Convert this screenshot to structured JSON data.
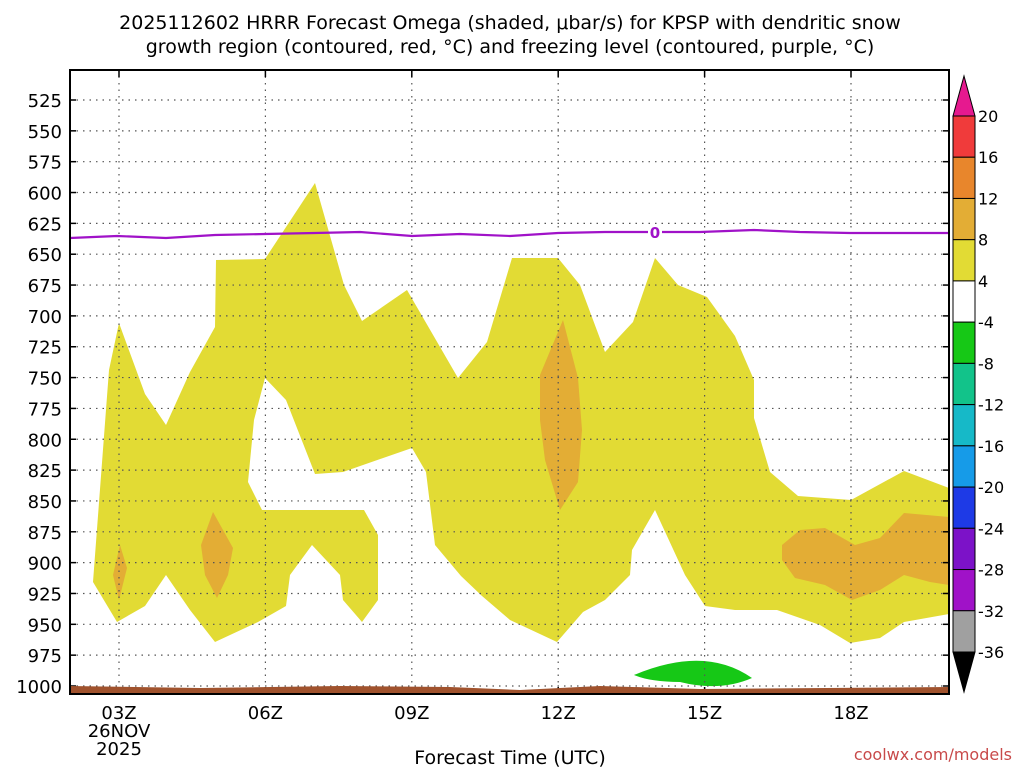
{
  "chart_data": {
    "type": "contour",
    "title_line1": "2025112602 HRRR Forecast Omega (shaded, μbar/s) for KPSP with dendritic snow",
    "title_line2": "growth region (contoured, red, °C) and freezing level (contoured, purple, °C)",
    "xlabel": "Forecast Time (UTC)",
    "ylabel": "",
    "x_ticks": [
      "03Z",
      "06Z",
      "09Z",
      "12Z",
      "15Z",
      "18Z"
    ],
    "x_date": "26NOV",
    "x_year": "2025",
    "xlim_hours": [
      2.5,
      20.0
    ],
    "y_ticks": [
      525,
      550,
      575,
      600,
      625,
      650,
      675,
      700,
      725,
      750,
      775,
      800,
      825,
      850,
      875,
      900,
      925,
      950,
      975,
      1000
    ],
    "y_unit": "hPa",
    "colorbar_labels": [
      "20",
      "16",
      "12",
      "8",
      "4",
      "-4",
      "-8",
      "-12",
      "-16",
      "-20",
      "-24",
      "-28",
      "-32",
      "-36"
    ],
    "colorbar_colors": [
      "#f03b3b",
      "#e8862c",
      "#e3ad35",
      "#e2db34",
      "#ffffff",
      "#16c816",
      "#12c38a",
      "#16b9c8",
      "#169be8",
      "#1e3ae6",
      "#7c12c8",
      "#a012c8",
      "#a0a0a0"
    ],
    "colorbar_top_arrow": "#e6198f",
    "colorbar_bottom_arrow": "#000000",
    "freezing_level_label": "0",
    "freezing_level_color": "#a012c8",
    "ground_color": "#a0522d",
    "shading": {
      "yellow_4_8": "#e2db34",
      "orange_8_12": "#e3ad35",
      "green_minus4_minus8": "#16c816"
    },
    "watermark": "coolwx.com/models"
  }
}
